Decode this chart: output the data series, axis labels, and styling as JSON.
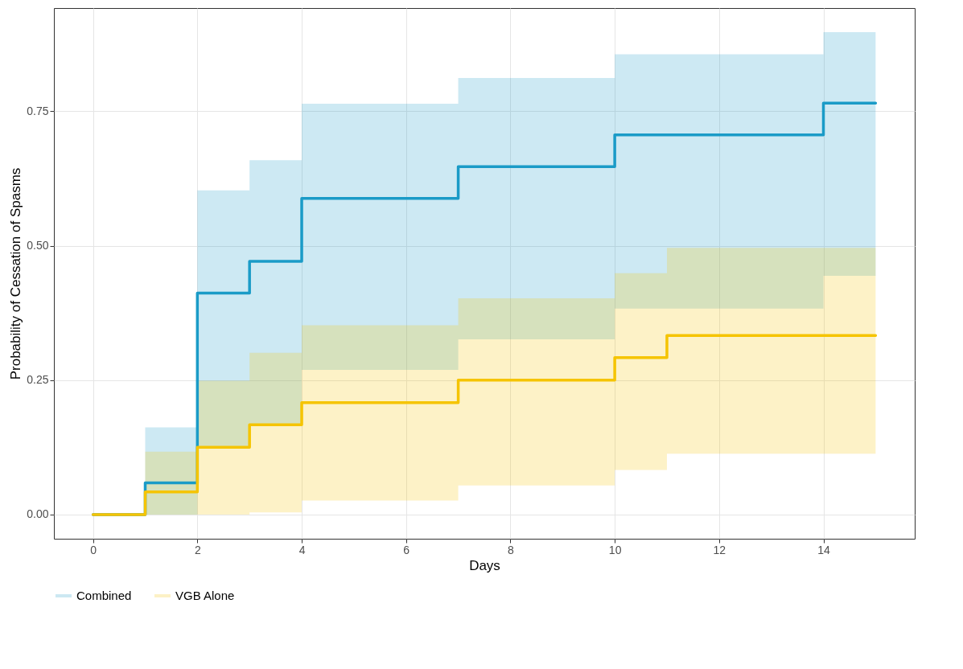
{
  "chart_data": {
    "type": "step",
    "xlabel": "Days",
    "ylabel": "Probability of Cessation of Spasms",
    "x": [
      0,
      1,
      2,
      3,
      4,
      7,
      10,
      11,
      14,
      15
    ],
    "series": [
      {
        "name": "Combined",
        "color": "#1a9bc7",
        "values": [
          0,
          0.059,
          0.412,
          0.471,
          0.588,
          0.647,
          0.706,
          0.706,
          0.765,
          0.765
        ],
        "upper": [
          0,
          0.162,
          0.603,
          0.659,
          0.764,
          0.812,
          0.856,
          0.856,
          0.897,
          0.897
        ],
        "lower": [
          0,
          0,
          0.124,
          0.168,
          0.269,
          0.326,
          0.383,
          0.383,
          0.444,
          0.444
        ]
      },
      {
        "name": "VGB Alone",
        "color": "#f5c400",
        "values": [
          0,
          0.042,
          0.125,
          0.167,
          0.208,
          0.25,
          0.292,
          0.333,
          0.333,
          0.333
        ],
        "upper": [
          0,
          0.117,
          0.249,
          0.301,
          0.352,
          0.402,
          0.449,
          0.496,
          0.496,
          0.496
        ],
        "lower": [
          0,
          0,
          0,
          0.004,
          0.026,
          0.054,
          0.083,
          0.113,
          0.113,
          0.113
        ]
      }
    ],
    "xlim": [
      -0.75,
      15.75
    ],
    "xticks": [
      0,
      2,
      4,
      6,
      8,
      10,
      12,
      14
    ],
    "ylim": [
      -0.045,
      0.942
    ],
    "yticks": [
      {
        "value": 0,
        "label": "0.00"
      },
      {
        "value": 0.25,
        "label": "0.25"
      },
      {
        "value": 0.5,
        "label": "0.50"
      },
      {
        "value": 0.75,
        "label": "0.75"
      }
    ],
    "grid": true,
    "legend": "bottom"
  }
}
